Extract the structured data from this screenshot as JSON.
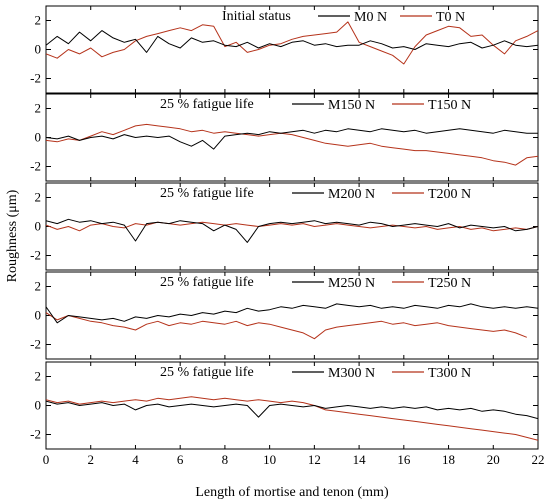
{
  "chart_data": {
    "type": "line",
    "xlabel": "Length of mortise and tenon (mm)",
    "ylabel": "Roughness (μm)",
    "xlim": [
      0,
      22
    ],
    "x_ticks": [
      "0",
      "2",
      "4",
      "6",
      "8",
      "10",
      "12",
      "14",
      "16",
      "18",
      "20",
      "22"
    ],
    "y_ticks": [
      "2",
      "0",
      "-2"
    ],
    "ylim": [
      -3,
      3
    ],
    "grid": false,
    "colors": {
      "mortise": "#000000",
      "tenon": "#b5331b"
    },
    "panels": [
      {
        "status": "Initial status",
        "series": [
          {
            "name": "M0 N",
            "kind": "mortise",
            "x": [
              0,
              0.5,
              1,
              1.5,
              2,
              2.5,
              3,
              3.5,
              4,
              4.5,
              5,
              5.5,
              6,
              6.5,
              7,
              7.5,
              8,
              8.5,
              9,
              9.5,
              10,
              10.5,
              11,
              11.5,
              12,
              12.5,
              13,
              13.5,
              14,
              14.5,
              15,
              15.5,
              16,
              16.5,
              17,
              17.5,
              18,
              18.5,
              19,
              19.5,
              20,
              20.5,
              21,
              21.5,
              22
            ],
            "y": [
              0.3,
              0.9,
              0.4,
              1.2,
              0.6,
              1.3,
              0.8,
              0.5,
              0.7,
              -0.2,
              0.9,
              0.4,
              0.1,
              0.8,
              0.5,
              0.6,
              0.3,
              0.2,
              0.5,
              0.1,
              0.4,
              0.2,
              0.5,
              0.6,
              0.3,
              0.4,
              0.2,
              0.3,
              0.3,
              0.6,
              0.4,
              0.1,
              0.2,
              0.0,
              0.4,
              0.3,
              0.2,
              0.4,
              0.5,
              0.1,
              0.3,
              0.6,
              0.3,
              0.2,
              0.3
            ]
          },
          {
            "name": "T0 N",
            "kind": "tenon",
            "x": [
              0,
              0.5,
              1,
              1.5,
              2,
              2.5,
              3,
              3.5,
              4,
              4.5,
              5,
              5.5,
              6,
              6.5,
              7,
              7.5,
              8,
              8.5,
              9,
              9.5,
              10,
              10.5,
              11,
              11.5,
              12,
              12.5,
              13,
              13.5,
              14,
              14.5,
              15,
              15.5,
              16,
              16.5,
              17,
              17.5,
              18,
              18.5,
              19,
              19.5,
              20,
              20.5,
              21,
              21.5,
              22
            ],
            "y": [
              -0.3,
              -0.6,
              0.0,
              -0.3,
              0.1,
              -0.5,
              -0.2,
              0.0,
              0.6,
              0.9,
              1.1,
              1.3,
              1.5,
              1.3,
              1.7,
              1.6,
              0.2,
              0.5,
              -0.2,
              0.0,
              0.3,
              0.4,
              0.7,
              0.9,
              1.0,
              1.1,
              1.2,
              1.9,
              0.5,
              0.2,
              -0.1,
              -0.4,
              -1.0,
              0.2,
              1.0,
              1.3,
              1.6,
              1.5,
              0.9,
              1.0,
              0.3,
              -0.3,
              0.6,
              0.9,
              1.3
            ]
          }
        ]
      },
      {
        "status": "25 % fatigue life",
        "series": [
          {
            "name": "M150 N",
            "kind": "mortise",
            "x": [
              0,
              0.5,
              1,
              1.5,
              2,
              2.5,
              3,
              3.5,
              4,
              4.5,
              5,
              5.5,
              6,
              6.5,
              7,
              7.5,
              8,
              8.5,
              9,
              9.5,
              10,
              10.5,
              11,
              11.5,
              12,
              12.5,
              13,
              13.5,
              14,
              14.5,
              15,
              15.5,
              16,
              16.5,
              17,
              17.5,
              18,
              18.5,
              19,
              19.5,
              20,
              20.5,
              21,
              21.5,
              22
            ],
            "y": [
              0.0,
              -0.1,
              0.1,
              -0.2,
              0.0,
              0.1,
              -0.1,
              0.2,
              0.0,
              0.1,
              0.0,
              0.1,
              -0.3,
              -0.6,
              -0.2,
              -0.8,
              0.1,
              0.2,
              0.3,
              0.2,
              0.4,
              0.3,
              0.4,
              0.5,
              0.3,
              0.5,
              0.4,
              0.6,
              0.5,
              0.4,
              0.6,
              0.5,
              0.4,
              0.5,
              0.3,
              0.4,
              0.5,
              0.6,
              0.5,
              0.4,
              0.3,
              0.5,
              0.4,
              0.3,
              0.3
            ]
          },
          {
            "name": "T150 N",
            "kind": "tenon",
            "x": [
              0,
              0.5,
              1,
              1.5,
              2,
              2.5,
              3,
              3.5,
              4,
              4.5,
              5,
              5.5,
              6,
              6.5,
              7,
              7.5,
              8,
              8.5,
              9,
              9.5,
              10,
              10.5,
              11,
              11.5,
              12,
              12.5,
              13,
              13.5,
              14,
              14.5,
              15,
              15.5,
              16,
              16.5,
              17,
              17.5,
              18,
              18.5,
              19,
              19.5,
              20,
              20.5,
              21,
              21.5,
              22
            ],
            "y": [
              -0.2,
              -0.3,
              -0.1,
              -0.2,
              0.1,
              0.4,
              0.2,
              0.5,
              0.8,
              0.9,
              0.8,
              0.7,
              0.6,
              0.4,
              0.5,
              0.3,
              0.4,
              0.3,
              0.2,
              0.1,
              0.2,
              0.3,
              0.2,
              0.0,
              -0.2,
              -0.4,
              -0.5,
              -0.6,
              -0.5,
              -0.4,
              -0.6,
              -0.7,
              -0.8,
              -0.9,
              -0.9,
              -1.0,
              -1.1,
              -1.2,
              -1.3,
              -1.4,
              -1.6,
              -1.7,
              -1.9,
              -1.4,
              -1.3
            ]
          }
        ]
      },
      {
        "status": "25 % fatigue life",
        "series": [
          {
            "name": "M200 N",
            "kind": "mortise",
            "x": [
              0,
              0.5,
              1,
              1.5,
              2,
              2.5,
              3,
              3.5,
              4,
              4.5,
              5,
              5.5,
              6,
              6.5,
              7,
              7.5,
              8,
              8.5,
              9,
              9.5,
              10,
              10.5,
              11,
              11.5,
              12,
              12.5,
              13,
              13.5,
              14,
              14.5,
              15,
              15.5,
              16,
              16.5,
              17,
              17.5,
              18,
              18.5,
              19,
              19.5,
              20,
              20.5,
              21,
              21.5,
              22
            ],
            "y": [
              0.4,
              0.2,
              0.5,
              0.3,
              0.4,
              0.2,
              0.3,
              0.1,
              -1.0,
              0.2,
              0.3,
              0.2,
              0.4,
              0.3,
              0.2,
              -0.3,
              0.1,
              -0.2,
              -1.1,
              0.0,
              0.2,
              0.3,
              0.2,
              0.3,
              0.4,
              0.2,
              0.3,
              0.2,
              0.1,
              0.3,
              0.2,
              0.0,
              0.1,
              0.2,
              0.1,
              0.0,
              0.2,
              -0.1,
              0.1,
              0.0,
              -0.1,
              0.0,
              -0.3,
              -0.2,
              0.0
            ]
          },
          {
            "name": "T200 N",
            "kind": "tenon",
            "x": [
              0,
              0.5,
              1,
              1.5,
              2,
              2.5,
              3,
              3.5,
              4,
              4.5,
              5,
              5.5,
              6,
              6.5,
              7,
              7.5,
              8,
              8.5,
              9,
              9.5,
              10,
              10.5,
              11,
              11.5,
              12,
              12.5,
              13,
              13.5,
              14,
              14.5,
              15,
              15.5,
              16,
              16.5,
              17,
              17.5,
              18,
              18.5,
              19,
              19.5,
              20,
              20.5,
              21,
              21.5,
              22
            ],
            "y": [
              0.1,
              -0.2,
              0.0,
              -0.3,
              0.1,
              0.2,
              0.0,
              -0.1,
              0.2,
              0.1,
              0.3,
              0.2,
              0.1,
              0.2,
              0.3,
              0.2,
              0.1,
              0.2,
              0.1,
              0.0,
              0.1,
              0.2,
              0.1,
              0.2,
              0.0,
              0.1,
              0.2,
              0.1,
              0.0,
              -0.1,
              0.0,
              0.1,
              0.0,
              -0.1,
              0.0,
              -0.2,
              -0.1,
              0.0,
              -0.2,
              -0.1,
              -0.3,
              -0.2,
              -0.1,
              -0.2,
              0.0
            ]
          }
        ]
      },
      {
        "status": "25 % fatigue life",
        "series": [
          {
            "name": "M250 N",
            "kind": "mortise",
            "x": [
              0,
              0.5,
              1,
              1.5,
              2,
              2.5,
              3,
              3.5,
              4,
              4.5,
              5,
              5.5,
              6,
              6.5,
              7,
              7.5,
              8,
              8.5,
              9,
              9.5,
              10,
              10.5,
              11,
              11.5,
              12,
              12.5,
              13,
              13.5,
              14,
              14.5,
              15,
              15.5,
              16,
              16.5,
              17,
              17.5,
              18,
              18.5,
              19,
              19.5,
              20,
              20.5,
              21,
              21.5,
              22
            ],
            "y": [
              0.6,
              -0.5,
              0.0,
              -0.1,
              -0.2,
              -0.3,
              -0.2,
              -0.4,
              -0.1,
              -0.2,
              0.0,
              -0.1,
              0.1,
              0.0,
              0.2,
              0.1,
              0.3,
              0.2,
              0.5,
              0.3,
              0.4,
              0.6,
              0.5,
              0.7,
              0.6,
              0.5,
              0.8,
              0.7,
              0.6,
              0.7,
              0.5,
              0.6,
              0.5,
              0.7,
              0.6,
              0.5,
              0.7,
              0.6,
              0.8,
              0.6,
              0.5,
              0.6,
              0.5,
              0.6,
              0.5
            ]
          },
          {
            "name": "T250 N",
            "kind": "tenon",
            "x": [
              0,
              0.5,
              1,
              1.5,
              2,
              2.5,
              3,
              3.5,
              4,
              4.5,
              5,
              5.5,
              6,
              6.5,
              7,
              7.5,
              8,
              8.5,
              9,
              9.5,
              10,
              10.5,
              11,
              11.5,
              12,
              12.5,
              13,
              13.5,
              14,
              14.5,
              15,
              15.5,
              16,
              16.5,
              17,
              17.5,
              18,
              18.5,
              19,
              19.5,
              20,
              20.5,
              21,
              21.5
            ],
            "y": [
              0.2,
              -0.3,
              0.0,
              -0.2,
              -0.4,
              -0.5,
              -0.7,
              -0.8,
              -1.0,
              -0.6,
              -0.4,
              -0.7,
              -0.5,
              -0.6,
              -0.4,
              -0.5,
              -0.6,
              -0.4,
              -0.7,
              -0.5,
              -0.6,
              -0.8,
              -1.0,
              -1.2,
              -1.6,
              -1.0,
              -0.8,
              -0.7,
              -0.6,
              -0.5,
              -0.4,
              -0.6,
              -0.5,
              -0.7,
              -0.6,
              -0.5,
              -0.7,
              -0.8,
              -0.9,
              -1.0,
              -1.1,
              -1.0,
              -1.2,
              -1.5
            ]
          }
        ]
      },
      {
        "status": "25 % fatigue life",
        "series": [
          {
            "name": "M300 N",
            "kind": "mortise",
            "x": [
              0,
              0.5,
              1,
              1.5,
              2,
              2.5,
              3,
              3.5,
              4,
              4.5,
              5,
              5.5,
              6,
              6.5,
              7,
              7.5,
              8,
              8.5,
              9,
              9.5,
              10,
              10.5,
              11,
              11.5,
              12,
              12.5,
              13,
              13.5,
              14,
              14.5,
              15,
              15.5,
              16,
              16.5,
              17,
              17.5,
              18,
              18.5,
              19,
              19.5,
              20,
              20.5,
              21,
              21.5,
              22
            ],
            "y": [
              0.3,
              0.1,
              0.2,
              0.0,
              0.1,
              0.2,
              0.0,
              0.1,
              -0.3,
              0.0,
              0.1,
              -0.1,
              0.0,
              0.1,
              0.0,
              -0.1,
              0.0,
              0.1,
              0.0,
              -0.8,
              0.0,
              0.1,
              0.0,
              -0.1,
              0.0,
              -0.2,
              -0.1,
              0.0,
              -0.1,
              -0.2,
              -0.1,
              -0.2,
              -0.1,
              -0.2,
              -0.1,
              -0.3,
              -0.2,
              -0.3,
              -0.2,
              -0.4,
              -0.3,
              -0.4,
              -0.6,
              -0.7,
              -0.9
            ]
          },
          {
            "name": "T300 N",
            "kind": "tenon",
            "x": [
              0,
              0.5,
              1,
              1.5,
              2,
              2.5,
              3,
              3.5,
              4,
              4.5,
              5,
              5.5,
              6,
              6.5,
              7,
              7.5,
              8,
              8.5,
              9,
              9.5,
              10,
              10.5,
              11,
              11.5,
              12,
              12.5,
              13,
              13.5,
              14,
              14.5,
              15,
              15.5,
              16,
              16.5,
              17,
              17.5,
              18,
              18.5,
              19,
              19.5,
              20,
              20.5,
              21,
              21.5,
              22
            ],
            "y": [
              0.4,
              0.2,
              0.3,
              0.1,
              0.2,
              0.3,
              0.2,
              0.3,
              0.4,
              0.3,
              0.5,
              0.4,
              0.5,
              0.6,
              0.5,
              0.4,
              0.5,
              0.4,
              0.3,
              0.4,
              0.3,
              0.2,
              0.3,
              0.2,
              0.0,
              -0.3,
              -0.4,
              -0.5,
              -0.6,
              -0.7,
              -0.8,
              -0.9,
              -1.0,
              -1.1,
              -1.2,
              -1.3,
              -1.4,
              -1.5,
              -1.6,
              -1.7,
              -1.8,
              -1.9,
              -2.0,
              -2.2,
              -2.4
            ]
          }
        ]
      }
    ]
  }
}
